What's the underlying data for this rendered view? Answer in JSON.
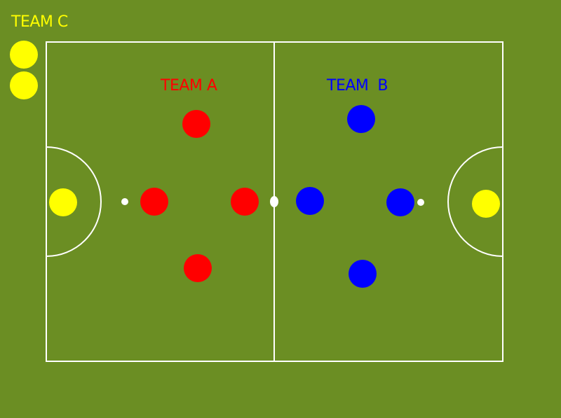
{
  "teams": {
    "team_c": {
      "label": "TEAM C",
      "color": "#ffff00",
      "role": "substitutes / goalkeepers"
    },
    "team_a": {
      "label": "TEAM A",
      "color": "#ff0000"
    },
    "team_b": {
      "label": "TEAM  B",
      "color": "#0000ff"
    }
  },
  "colors": {
    "background": "#6b8e23",
    "lines": "#ffffff"
  },
  "players": {
    "team_c_bench_count": 2,
    "team_c_goalkeepers_count": 2,
    "team_a_count": 4,
    "team_b_count": 4
  },
  "icons": [
    "player-marker-icon",
    "center-spot-icon",
    "penalty-spot-icon"
  ]
}
